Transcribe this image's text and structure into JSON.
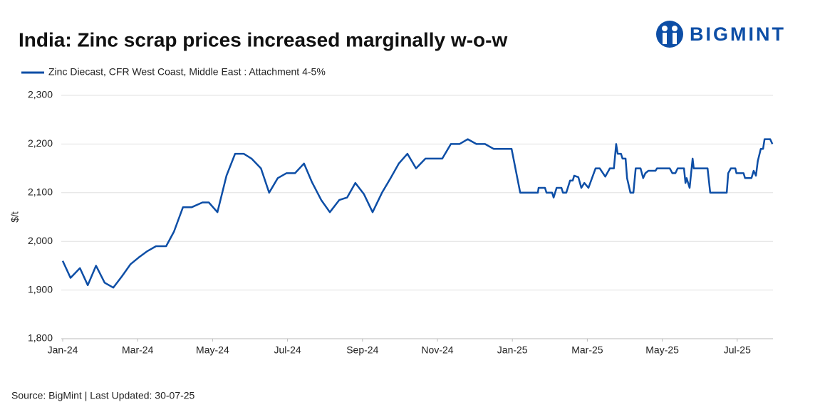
{
  "chart_data": {
    "type": "line",
    "title": "India: Zinc scrap prices increased marginally w-o-w",
    "logo": "BIGMINT",
    "y_label": "$/t",
    "source": "Source: BigMint | Last Updated: 30-07-25",
    "grid": true,
    "legend": "top-left",
    "xlim": [
      0,
      19
    ],
    "ylim": [
      1800,
      2300
    ],
    "xticks": [
      {
        "value": 0,
        "label": "Jan-24"
      },
      {
        "value": 2,
        "label": "Mar-24"
      },
      {
        "value": 4,
        "label": "May-24"
      },
      {
        "value": 6,
        "label": "Jul-24"
      },
      {
        "value": 8,
        "label": "Sep-24"
      },
      {
        "value": 10,
        "label": "Nov-24"
      },
      {
        "value": 12,
        "label": "Jan-25"
      },
      {
        "value": 14,
        "label": "Mar-25"
      },
      {
        "value": 16,
        "label": "May-25"
      },
      {
        "value": 18,
        "label": "Jul-25"
      }
    ],
    "yticks": [
      {
        "value": 1800,
        "label": "1,800"
      },
      {
        "value": 1900,
        "label": "1,900"
      },
      {
        "value": 2000,
        "label": "2,000"
      },
      {
        "value": 2100,
        "label": "2,100"
      },
      {
        "value": 2200,
        "label": "2,200"
      },
      {
        "value": 2300,
        "label": "2,300"
      }
    ],
    "x": [
      0,
      0.21,
      0.46,
      0.67,
      0.89,
      1.12,
      1.35,
      1.58,
      1.81,
      2.03,
      2.26,
      2.49,
      2.76,
      2.97,
      3.21,
      3.44,
      3.73,
      3.9,
      4.13,
      4.37,
      4.6,
      4.83,
      5.04,
      5.29,
      5.51,
      5.74,
      5.97,
      6.2,
      6.44,
      6.65,
      6.9,
      7.13,
      7.38,
      7.59,
      7.81,
      8.04,
      8.27,
      8.52,
      8.75,
      8.97,
      9.2,
      9.43,
      9.68,
      10.13,
      10.36,
      10.59,
      10.81,
      11.04,
      11.27,
      11.5,
      11.98,
      12.21,
      12.68,
      12.7,
      12.87,
      12.91,
      13.06,
      13.1,
      13.18,
      13.31,
      13.35,
      13.44,
      13.54,
      13.61,
      13.65,
      13.76,
      13.84,
      13.92,
      14.03,
      14.22,
      14.33,
      14.48,
      14.6,
      14.71,
      14.77,
      14.81,
      14.9,
      14.94,
      15.02,
      15.06,
      15.15,
      15.23,
      15.29,
      15.42,
      15.49,
      15.55,
      15.63,
      15.82,
      15.86,
      16.2,
      16.27,
      16.35,
      16.41,
      16.58,
      16.62,
      16.65,
      16.73,
      16.81,
      16.84,
      17.21,
      17.28,
      17.72,
      17.76,
      17.83,
      17.95,
      17.98,
      18.17,
      18.21,
      18.38,
      18.44,
      18.5,
      18.55,
      18.63,
      18.69,
      18.73,
      18.88,
      18.94
    ],
    "series": [
      {
        "name": "Zinc Diecast, CFR West Coast, Middle East : Attachment 4-5%",
        "color": "#0d4ea6",
        "values": [
          1960,
          1925,
          1945,
          1910,
          1950,
          1915,
          1905,
          1928,
          1953,
          1967,
          1980,
          1990,
          1990,
          2020,
          2070,
          2070,
          2080,
          2080,
          2060,
          2135,
          2180,
          2180,
          2170,
          2150,
          2100,
          2130,
          2140,
          2140,
          2160,
          2122,
          2085,
          2060,
          2085,
          2090,
          2120,
          2097,
          2060,
          2100,
          2130,
          2160,
          2180,
          2150,
          2170,
          2170,
          2200,
          2200,
          2210,
          2200,
          2200,
          2190,
          2190,
          2100,
          2100,
          2110,
          2110,
          2100,
          2100,
          2090,
          2110,
          2110,
          2100,
          2100,
          2125,
          2125,
          2135,
          2132,
          2110,
          2120,
          2110,
          2150,
          2150,
          2133,
          2150,
          2150,
          2200,
          2180,
          2180,
          2170,
          2170,
          2130,
          2100,
          2100,
          2150,
          2150,
          2130,
          2140,
          2145,
          2145,
          2150,
          2150,
          2140,
          2140,
          2150,
          2150,
          2120,
          2130,
          2110,
          2170,
          2150,
          2150,
          2100,
          2100,
          2140,
          2150,
          2150,
          2140,
          2140,
          2130,
          2130,
          2145,
          2135,
          2165,
          2190,
          2190,
          2210,
          2210,
          2200
        ]
      }
    ]
  }
}
